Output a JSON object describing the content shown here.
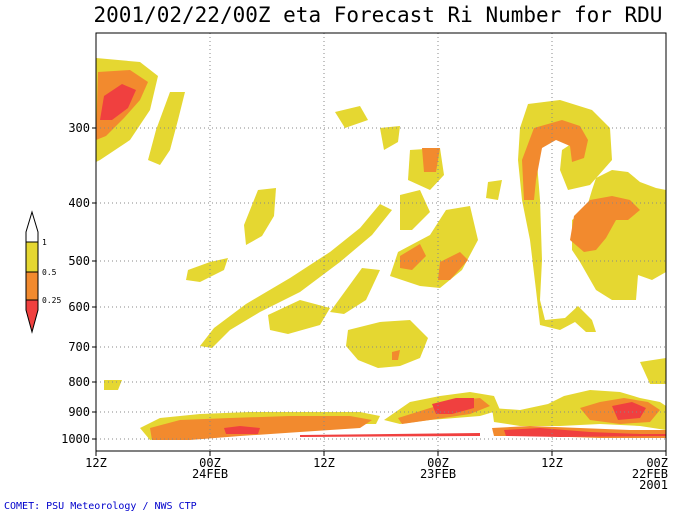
{
  "chart_data": {
    "type": "contour",
    "title": "2001/02/22/00Z eta Forecast Ri Number for RDU",
    "xlabel": "",
    "ylabel": "",
    "y_ticks": [
      "300",
      "400",
      "500",
      "600",
      "700",
      "800",
      "900",
      "1000"
    ],
    "x_ticks": [
      {
        "l1": "12Z",
        "l2": "",
        "l3": ""
      },
      {
        "l1": "00Z",
        "l2": "24FEB",
        "l3": ""
      },
      {
        "l1": "12Z",
        "l2": "",
        "l3": ""
      },
      {
        "l1": "00Z",
        "l2": "23FEB",
        "l3": ""
      },
      {
        "l1": "12Z",
        "l2": "",
        "l3": ""
      },
      {
        "l1": "00Z",
        "l2": "22FEB",
        "l3": "2001"
      }
    ],
    "legend": {
      "levels": [
        "1",
        "0.5",
        "0.25"
      ]
    },
    "fill_colors": {
      "gt_1": "#ffffff",
      "mid": "#e5d731",
      "low": "#f28a2e",
      "lowest": "#f0403f"
    },
    "grid": true,
    "credit": "COMET:  PSU Meteorology / NWS CTP"
  }
}
